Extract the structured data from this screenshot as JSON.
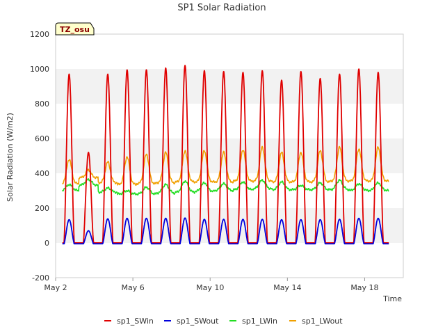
{
  "chart_data": {
    "type": "line",
    "title": "SP1 Solar Radiation",
    "xlabel": "Time",
    "ylabel": "Solar Radiation (W/m2)",
    "ylim": [
      -200,
      1200
    ],
    "yticks": [
      -200,
      0,
      200,
      400,
      600,
      800,
      1000,
      1200
    ],
    "xlim_days": [
      2,
      20
    ],
    "xticks": [
      {
        "day": 2,
        "label": "May 2"
      },
      {
        "day": 6,
        "label": "May 6"
      },
      {
        "day": 10,
        "label": "May 10"
      },
      {
        "day": 14,
        "label": "May 14"
      },
      {
        "day": 18,
        "label": "May 18"
      }
    ],
    "grid": true,
    "legend_position": "bottom",
    "annotation": "TZ_osu",
    "days": [
      2.7,
      3.7,
      4.7,
      5.7,
      6.7,
      7.7,
      8.7,
      9.7,
      10.7,
      11.7,
      12.7,
      13.7,
      14.7,
      15.7,
      16.7,
      17.7,
      18.7
    ],
    "series": [
      {
        "name": "sp1_SWin",
        "color": "#e00000",
        "daily_peak": [
          970,
          520,
          970,
          995,
          995,
          1005,
          1020,
          990,
          985,
          980,
          990,
          935,
          985,
          945,
          970,
          1000,
          980
        ]
      },
      {
        "name": "sp1_SWout",
        "color": "#0000dd",
        "daily_peak": [
          140,
          75,
          145,
          148,
          148,
          148,
          150,
          142,
          142,
          142,
          142,
          140,
          140,
          140,
          142,
          148,
          148
        ]
      },
      {
        "name": "sp1_LWin",
        "color": "#22dd22",
        "daily_base": [
          300,
          330,
          290,
          280,
          280,
          285,
          290,
          295,
          300,
          305,
          310,
          305,
          305,
          305,
          305,
          300,
          300
        ],
        "daily_peak": [
          335,
          365,
          315,
          300,
          320,
          335,
          355,
          345,
          340,
          350,
          360,
          350,
          330,
          345,
          360,
          340,
          345
        ]
      },
      {
        "name": "sp1_LWout",
        "color": "#f0a000",
        "daily_base": [
          340,
          375,
          345,
          335,
          340,
          345,
          350,
          350,
          350,
          355,
          355,
          350,
          350,
          350,
          355,
          355,
          355
        ],
        "daily_peak": [
          480,
          420,
          465,
          495,
          510,
          520,
          530,
          530,
          520,
          535,
          550,
          520,
          520,
          530,
          550,
          540,
          550
        ]
      }
    ]
  }
}
